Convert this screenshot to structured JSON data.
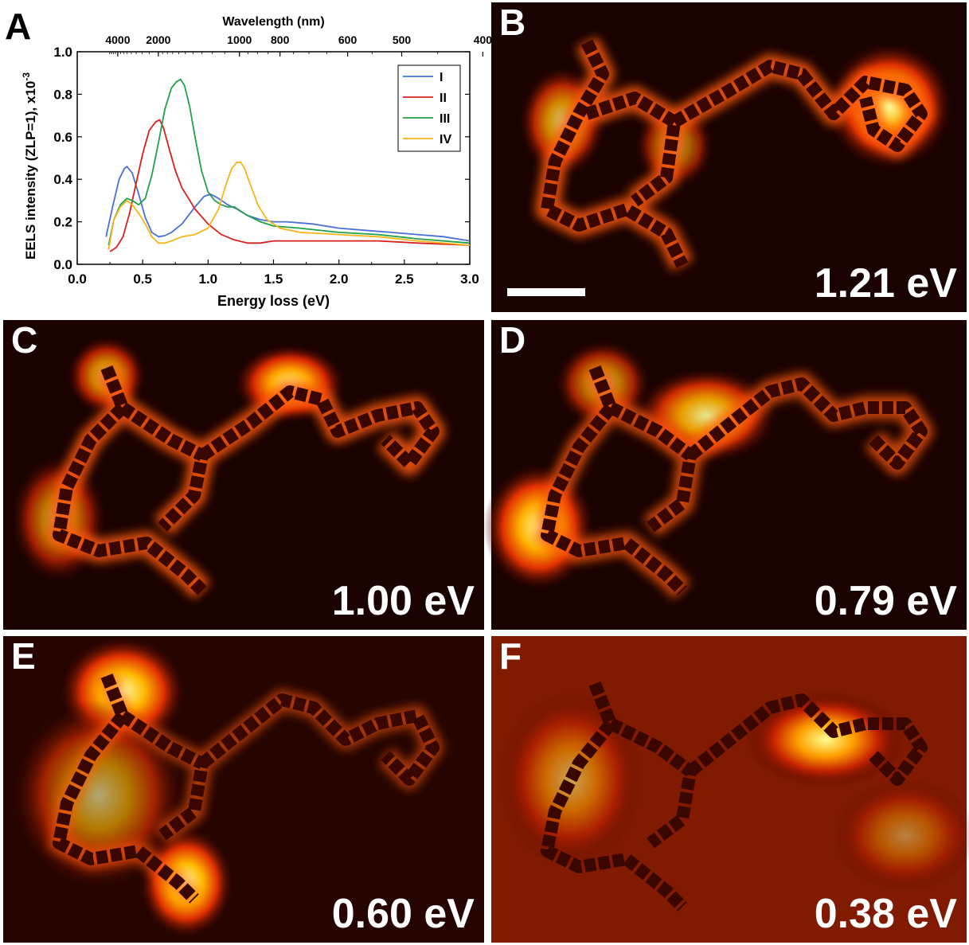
{
  "chart_data": {
    "type": "line",
    "panel_label": "A",
    "xlabel": "Energy loss (eV)",
    "ylabel": "EELS intensity (ZLP=1), x10",
    "ylabel_exp": "-3",
    "top_xlabel": "Wavelength (nm)",
    "xlim": [
      0.0,
      3.0
    ],
    "ylim": [
      0.0,
      1.0
    ],
    "x_ticks": [
      "0.0",
      "0.5",
      "1.0",
      "1.5",
      "2.0",
      "2.5",
      "3.0"
    ],
    "y_ticks": [
      "0.0",
      "0.2",
      "0.4",
      "0.6",
      "0.8",
      "1.0"
    ],
    "top_ticks": [
      "4000",
      "2000",
      "1000",
      "800",
      "600",
      "500",
      "400"
    ],
    "top_tick_values_nm": [
      4000,
      2000,
      1000,
      800,
      600,
      500,
      400
    ],
    "legend_position": "top-right",
    "grid": false,
    "series": [
      {
        "name": "I",
        "color": "#4a6fd8",
        "x": [
          0.22,
          0.27,
          0.32,
          0.36,
          0.38,
          0.42,
          0.47,
          0.52,
          0.57,
          0.62,
          0.67,
          0.72,
          0.8,
          0.9,
          0.97,
          1.02,
          1.08,
          1.15,
          1.22,
          1.3,
          1.4,
          1.5,
          1.6,
          1.8,
          2.0,
          2.2,
          2.4,
          2.6,
          2.8,
          3.0
        ],
        "y": [
          0.13,
          0.27,
          0.4,
          0.45,
          0.46,
          0.43,
          0.33,
          0.22,
          0.15,
          0.13,
          0.135,
          0.15,
          0.19,
          0.27,
          0.32,
          0.33,
          0.31,
          0.28,
          0.26,
          0.23,
          0.21,
          0.2,
          0.2,
          0.19,
          0.17,
          0.16,
          0.15,
          0.14,
          0.13,
          0.11
        ]
      },
      {
        "name": "II",
        "color": "#d8201e",
        "x": [
          0.25,
          0.3,
          0.35,
          0.4,
          0.45,
          0.5,
          0.55,
          0.6,
          0.63,
          0.66,
          0.7,
          0.75,
          0.8,
          0.85,
          0.9,
          1.0,
          1.1,
          1.2,
          1.3,
          1.4,
          1.5,
          1.7,
          2.0,
          2.3,
          2.6,
          3.0
        ],
        "y": [
          0.06,
          0.08,
          0.13,
          0.24,
          0.38,
          0.52,
          0.63,
          0.67,
          0.68,
          0.64,
          0.55,
          0.44,
          0.36,
          0.31,
          0.26,
          0.19,
          0.14,
          0.115,
          0.1,
          0.1,
          0.11,
          0.11,
          0.11,
          0.11,
          0.1,
          0.09
        ]
      },
      {
        "name": "III",
        "color": "#21a048",
        "x": [
          0.24,
          0.28,
          0.33,
          0.38,
          0.42,
          0.47,
          0.52,
          0.57,
          0.62,
          0.67,
          0.72,
          0.76,
          0.79,
          0.82,
          0.86,
          0.9,
          0.95,
          1.0,
          1.05,
          1.1,
          1.15,
          1.2,
          1.3,
          1.4,
          1.5,
          1.7,
          2.0,
          2.3,
          2.6,
          3.0
        ],
        "y": [
          0.09,
          0.21,
          0.28,
          0.31,
          0.3,
          0.28,
          0.31,
          0.42,
          0.57,
          0.73,
          0.83,
          0.86,
          0.87,
          0.84,
          0.74,
          0.6,
          0.44,
          0.34,
          0.3,
          0.28,
          0.27,
          0.27,
          0.23,
          0.2,
          0.18,
          0.17,
          0.15,
          0.14,
          0.12,
          0.1
        ]
      },
      {
        "name": "IV",
        "color": "#f5b51a",
        "x": [
          0.24,
          0.28,
          0.33,
          0.38,
          0.42,
          0.47,
          0.52,
          0.57,
          0.62,
          0.67,
          0.72,
          0.8,
          0.9,
          1.0,
          1.08,
          1.14,
          1.18,
          1.22,
          1.25,
          1.28,
          1.32,
          1.38,
          1.45,
          1.55,
          1.7,
          2.0,
          2.3,
          2.6,
          3.0
        ],
        "y": [
          0.07,
          0.21,
          0.27,
          0.3,
          0.28,
          0.24,
          0.19,
          0.13,
          0.1,
          0.1,
          0.11,
          0.13,
          0.14,
          0.17,
          0.26,
          0.38,
          0.45,
          0.48,
          0.48,
          0.45,
          0.38,
          0.28,
          0.21,
          0.17,
          0.15,
          0.14,
          0.13,
          0.11,
          0.09
        ]
      }
    ]
  },
  "panels": [
    {
      "label": "B",
      "energy": "1.21 eV",
      "scale_bar": true
    },
    {
      "label": "C",
      "energy": "1.00 eV"
    },
    {
      "label": "D",
      "energy": "0.79 eV"
    },
    {
      "label": "E",
      "energy": "0.60 eV"
    },
    {
      "label": "F",
      "energy": "0.38 eV"
    }
  ]
}
